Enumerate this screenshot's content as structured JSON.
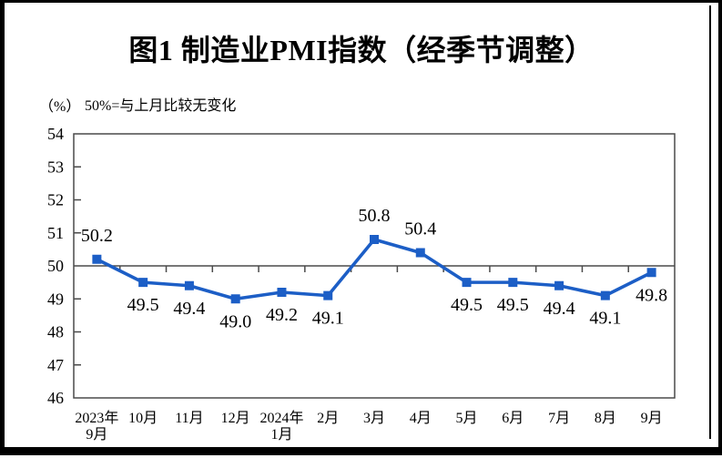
{
  "figure": {
    "title": "图1 制造业PMI指数（经季节调整）",
    "unit_label": "（%）",
    "reference_note": "50%=与上月比较无变化"
  },
  "colors": {
    "line": "#1c5ec6",
    "axis": "#4a4a4a",
    "text": "#000000",
    "frame": "#000000"
  },
  "chart_data": {
    "type": "line",
    "title": "图1 制造业PMI指数（经季节调整）",
    "unit": "%",
    "annotation": "50%=与上月比较无变化",
    "categories": [
      [
        "2023年",
        "9月"
      ],
      [
        "10月"
      ],
      [
        "11月"
      ],
      [
        "12月"
      ],
      [
        "2024年",
        "1月"
      ],
      [
        "2月"
      ],
      [
        "3月"
      ],
      [
        "4月"
      ],
      [
        "5月"
      ],
      [
        "6月"
      ],
      [
        "7月"
      ],
      [
        "8月"
      ],
      [
        "9月"
      ]
    ],
    "series": [
      {
        "name": "制造业PMI指数（经季节调整）",
        "values": [
          50.2,
          49.5,
          49.4,
          49.0,
          49.2,
          49.1,
          50.8,
          50.4,
          49.5,
          49.5,
          49.4,
          49.1,
          49.8
        ]
      }
    ],
    "ylim": [
      46,
      54
    ],
    "ytick_step": 1,
    "reference_line": 50,
    "grid": false,
    "legend": "none",
    "marker": "square",
    "data_labels": true
  }
}
